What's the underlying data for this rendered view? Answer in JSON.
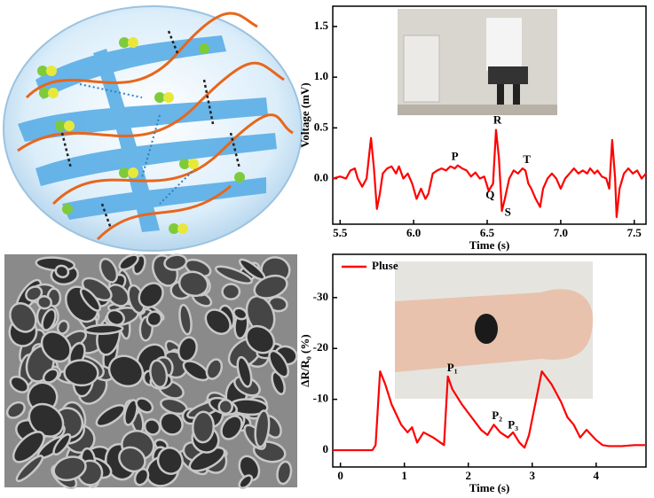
{
  "chart_data": [
    {
      "type": "line",
      "color": "#ff0000",
      "x_label": "Time (s)",
      "y_label": "Voltage (mV)",
      "xlim": [
        5.45,
        7.58
      ],
      "ylim": [
        -0.45,
        1.7
      ],
      "xticks": [
        5.5,
        {
          "value": 6,
          "label": "6.0"
        },
        6.5,
        {
          "value": 7,
          "label": "7.0"
        },
        7.5
      ],
      "yticks": [
        {
          "value": 0,
          "label": "0.0"
        },
        0.5,
        {
          "value": 1,
          "label": "1.0"
        },
        1.5
      ],
      "x": [
        5.45,
        5.5,
        5.54,
        5.57,
        5.6,
        5.62,
        5.65,
        5.68,
        5.71,
        5.73,
        5.75,
        5.77,
        5.79,
        5.82,
        5.85,
        5.88,
        5.9,
        5.93,
        5.96,
        5.99,
        6.02,
        6.05,
        6.08,
        6.1,
        6.13,
        6.16,
        6.19,
        6.22,
        6.25,
        6.28,
        6.3,
        6.33,
        6.36,
        6.39,
        6.42,
        6.45,
        6.48,
        6.51,
        6.54,
        6.56,
        6.58,
        6.6,
        6.62,
        6.65,
        6.68,
        6.71,
        6.74,
        6.76,
        6.78,
        6.8,
        6.83,
        6.86,
        6.88,
        6.91,
        6.94,
        6.97,
        7.0,
        7.03,
        7.06,
        7.09,
        7.12,
        7.15,
        7.18,
        7.2,
        7.23,
        7.25,
        7.28,
        7.31,
        7.33,
        7.35,
        7.37,
        7.38,
        7.4,
        7.43,
        7.46,
        7.49,
        7.52,
        7.55,
        7.58
      ],
      "values": [
        0,
        0.02,
        0,
        0.08,
        0.1,
        0,
        -0.08,
        0,
        0.4,
        0.1,
        -0.3,
        -0.15,
        0.05,
        0.1,
        0.12,
        0.05,
        0.12,
        0,
        0.05,
        -0.05,
        -0.2,
        -0.1,
        -0.2,
        -0.15,
        0.05,
        0.08,
        0.1,
        0.08,
        0.12,
        0.1,
        0.13,
        0.1,
        0.08,
        0.02,
        0.06,
        0,
        0.02,
        -0.12,
        -0.05,
        0.48,
        0.2,
        -0.32,
        -0.2,
        0,
        0.08,
        0.05,
        0.1,
        0.08,
        -0.05,
        -0.1,
        -0.2,
        -0.28,
        -0.1,
        0,
        0.05,
        0,
        -0.1,
        0,
        0.05,
        0.1,
        0.05,
        0.08,
        0.05,
        0.1,
        0.05,
        0.08,
        0.02,
        0,
        -0.1,
        0.38,
        0,
        -0.38,
        -0.1,
        0.05,
        0.1,
        0.05,
        0.08,
        0,
        0.05
      ],
      "annotations": [
        {
          "text": "P",
          "x": 6.28,
          "y": 0.21
        },
        {
          "text": "R",
          "x": 6.57,
          "y": 0.57
        },
        {
          "text": "Q",
          "x": 6.52,
          "y": -0.17
        },
        {
          "text": "S",
          "x": 6.64,
          "y": -0.34
        },
        {
          "text": "T",
          "x": 6.77,
          "y": 0.18
        }
      ]
    },
    {
      "type": "line",
      "x_label": "Time (s)",
      "y_label": "ΔR/R₀ (%)",
      "xlim": [
        -0.12,
        4.78
      ],
      "ylim": [
        3.3,
        -38.5
      ],
      "xticks": [
        0,
        1,
        2,
        3,
        4
      ],
      "yticks": [
        -30,
        -20,
        -10,
        0
      ],
      "legend": "upper left",
      "x": [
        -0.12,
        0.5,
        0.55,
        0.62,
        0.7,
        0.8,
        0.95,
        1.05,
        1.12,
        1.2,
        1.3,
        1.45,
        1.62,
        1.68,
        1.75,
        1.9,
        2.05,
        2.2,
        2.3,
        2.4,
        2.5,
        2.62,
        2.7,
        2.8,
        2.88,
        2.95,
        3.15,
        3.3,
        3.45,
        3.55,
        3.65,
        3.75,
        3.85,
        4.0,
        4.1,
        4.2,
        4.4,
        4.6,
        4.78
      ],
      "series": [
        {
          "name": "Pluse",
          "color": "#ff0000",
          "values": [
            0,
            0,
            -1,
            -15.5,
            -13,
            -9,
            -5,
            -3.5,
            -4.5,
            -1.5,
            -3.5,
            -2.5,
            -1,
            -14.5,
            -12,
            -9,
            -6.5,
            -4,
            -3,
            -5,
            -3.5,
            -2.5,
            -3.5,
            -1.5,
            -0.5,
            -3,
            -15.5,
            -13,
            -9.5,
            -6.5,
            -5,
            -2.5,
            -4,
            -2,
            -1,
            -0.8,
            -0.8,
            -1,
            -1
          ]
        }
      ],
      "annotations": [
        {
          "text": "P₁",
          "x": 1.75,
          "y": -16
        },
        {
          "text": "P₂",
          "x": 2.45,
          "y": -6.6
        },
        {
          "text": "P₃",
          "x": 2.7,
          "y": -4.8
        }
      ]
    }
  ]
}
